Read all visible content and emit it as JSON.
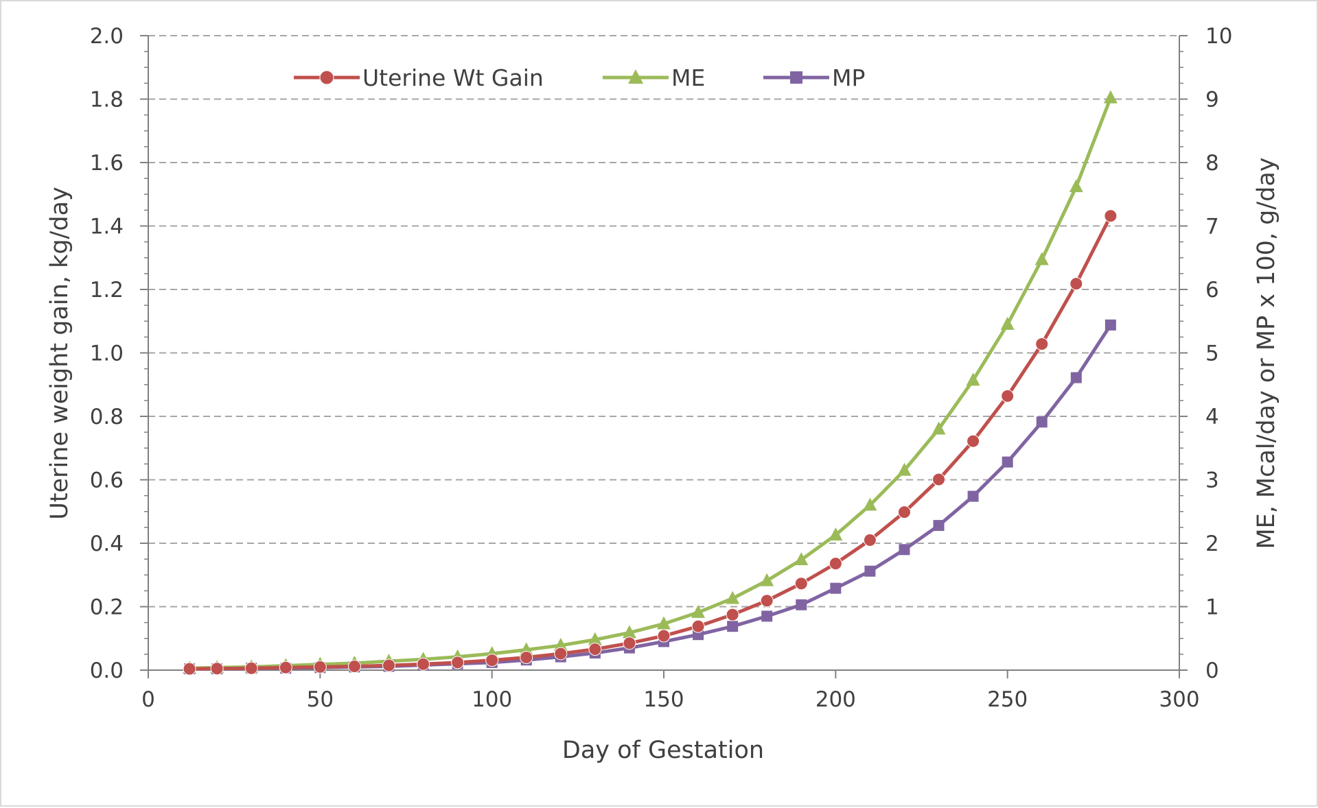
{
  "chart_data": {
    "type": "line",
    "title": "",
    "xlabel": "Day of Gestation",
    "ylabel_left": "Uterine weight gain, kg/day",
    "ylabel_right": "ME, Mcal/day or MP x 100, g/day",
    "xlim": [
      0,
      300
    ],
    "ylim_left": [
      0,
      2
    ],
    "ylim_right": [
      0,
      10
    ],
    "x_ticks": [
      "0",
      "50",
      "100",
      "150",
      "200",
      "250",
      "300"
    ],
    "y_left_ticks": [
      "0.0",
      "0.2",
      "0.4",
      "0.6",
      "0.8",
      "1.0",
      "1.2",
      "1.4",
      "1.6",
      "1.8",
      "2.0"
    ],
    "y_right_ticks": [
      "0",
      "1",
      "2",
      "3",
      "4",
      "5",
      "6",
      "7",
      "8",
      "9",
      "10"
    ],
    "grid": "horizontal dashed",
    "legend_position": "top-left",
    "x": [
      12,
      20,
      30,
      40,
      50,
      60,
      70,
      80,
      90,
      100,
      110,
      120,
      130,
      140,
      150,
      160,
      170,
      180,
      190,
      200,
      210,
      220,
      230,
      240,
      250,
      260,
      270,
      280
    ],
    "series": [
      {
        "name": "Uterine Wt Gain",
        "axis": "left",
        "marker": "circle",
        "color": "#c0504d",
        "values": [
          0.004,
          0.005,
          0.006,
          0.008,
          0.01,
          0.012,
          0.015,
          0.019,
          0.024,
          0.031,
          0.04,
          0.052,
          0.066,
          0.085,
          0.108,
          0.138,
          0.175,
          0.219,
          0.273,
          0.336,
          0.41,
          0.498,
          0.601,
          0.722,
          0.864,
          1.028,
          1.218,
          1.432
        ]
      },
      {
        "name": "ME",
        "axis": "right",
        "marker": "triangle",
        "color": "#9bbb59",
        "values": [
          0.03,
          0.04,
          0.05,
          0.07,
          0.09,
          0.11,
          0.14,
          0.17,
          0.21,
          0.26,
          0.32,
          0.39,
          0.48,
          0.59,
          0.73,
          0.91,
          1.13,
          1.41,
          1.74,
          2.13,
          2.6,
          3.15,
          3.8,
          4.57,
          5.45,
          6.47,
          7.62,
          9.02
        ]
      },
      {
        "name": "MP",
        "axis": "right",
        "marker": "square",
        "color": "#8064a2",
        "values": [
          0.02,
          0.02,
          0.03,
          0.03,
          0.04,
          0.05,
          0.06,
          0.08,
          0.1,
          0.12,
          0.16,
          0.21,
          0.27,
          0.35,
          0.45,
          0.56,
          0.69,
          0.85,
          1.03,
          1.29,
          1.56,
          1.9,
          2.28,
          2.74,
          3.28,
          3.91,
          4.61,
          5.44
        ]
      }
    ]
  }
}
